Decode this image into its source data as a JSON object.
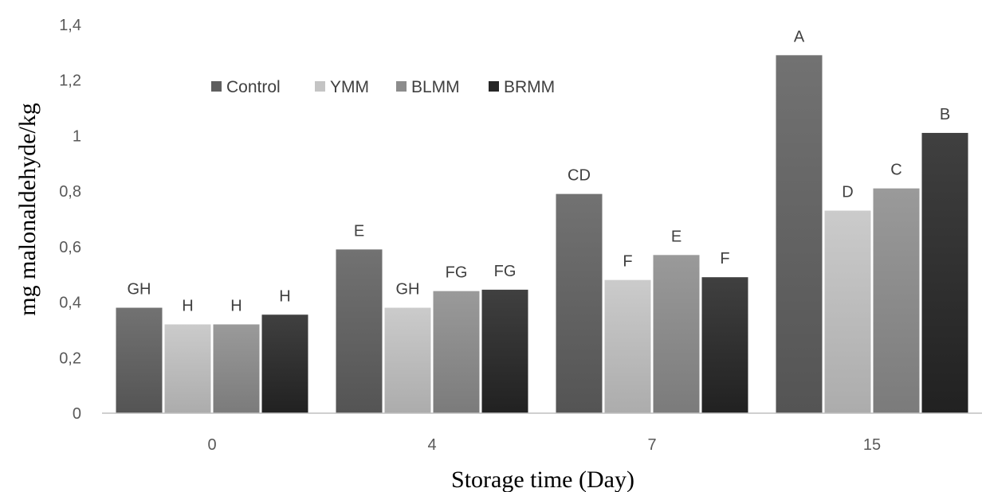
{
  "chart_data": {
    "type": "bar",
    "title": "",
    "xlabel": "Storage time (Day)",
    "ylabel": "mg malonaldehyde/kg",
    "ylim": [
      0,
      1.4
    ],
    "yticks": [
      "0",
      "0,2",
      "0,4",
      "0,6",
      "0,8",
      "1",
      "1,2",
      "1,4"
    ],
    "categories": [
      "0",
      "4",
      "7",
      "15"
    ],
    "grid": false,
    "legend_position": "top-left",
    "series": [
      {
        "name": "Control",
        "color": "#5f5f5f",
        "values": [
          0.38,
          0.59,
          0.79,
          1.29
        ],
        "labels": [
          "GH",
          "E",
          "CD",
          "A"
        ]
      },
      {
        "name": "YMM",
        "color": "#c4c4c4",
        "values": [
          0.32,
          0.38,
          0.48,
          0.73
        ],
        "labels": [
          "H",
          "GH",
          "F",
          "D"
        ]
      },
      {
        "name": "BLMM",
        "color": "#8c8c8c",
        "values": [
          0.32,
          0.44,
          0.57,
          0.81
        ],
        "labels": [
          "H",
          "FG",
          "E",
          "C"
        ]
      },
      {
        "name": "BRMM",
        "color": "#262626",
        "values": [
          0.355,
          0.445,
          0.49,
          1.01
        ],
        "labels": [
          "H",
          "FG",
          "F",
          "B"
        ]
      }
    ]
  }
}
